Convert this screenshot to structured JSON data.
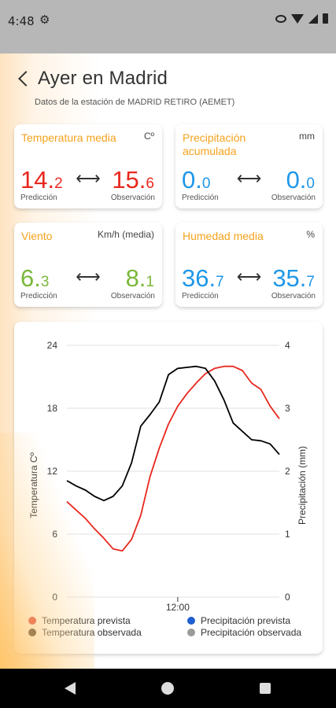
{
  "status_bar": {
    "time": "4:48"
  },
  "header": {
    "title": "Ayer en Madrid",
    "subtitle": "Datos de la estación de MADRID RETIRO (AEMET)"
  },
  "cards": [
    {
      "label": "Temperatura media",
      "unit": "Cº",
      "pred_int": "14.",
      "pred_dec": "2",
      "obs_int": "15.",
      "obs_dec": "6",
      "pred_caption": "Predicción",
      "obs_caption": "Observación",
      "color": "#e8281e"
    },
    {
      "label": "Precipitación acumulada",
      "unit": "mm",
      "pred_int": "0.",
      "pred_dec": "0",
      "obs_int": "0.",
      "obs_dec": "0",
      "pred_caption": "Predicción",
      "obs_caption": "Observación",
      "color": "#1f97e8"
    },
    {
      "label": "Viento",
      "unit": "Km/h (media)",
      "pred_int": "6.",
      "pred_dec": "3",
      "obs_int": "8.",
      "obs_dec": "1",
      "pred_caption": "Predicción",
      "obs_caption": "Observación",
      "color": "#7ab83a"
    },
    {
      "label": "Humedad media",
      "unit": "%",
      "pred_int": "36.",
      "pred_dec": "7",
      "obs_int": "35.",
      "obs_dec": "7",
      "pred_caption": "Predicción",
      "obs_caption": "Observación",
      "color": "#1f97e8"
    }
  ],
  "chart_data": {
    "type": "line",
    "xlabel": "",
    "x_tick_labels": [
      "12:00"
    ],
    "ylabel": "Temperatura Cº",
    "ylabel_right": "Precipitación (mm)",
    "ylim": [
      0,
      24
    ],
    "yticks": [
      "0",
      "6",
      "12",
      "18",
      "24"
    ],
    "ylim_right": [
      0,
      4
    ],
    "yticks_right": [
      "0",
      "1",
      "2",
      "3",
      "4"
    ],
    "hours": [
      0,
      1,
      2,
      3,
      4,
      5,
      6,
      7,
      8,
      9,
      10,
      11,
      12,
      13,
      14,
      15,
      16,
      17,
      18,
      19,
      20,
      21,
      22,
      23
    ],
    "series": [
      {
        "name": "Temperatura prevista",
        "color": "#e8281e",
        "values": [
          9.1,
          8.3,
          7.5,
          6.5,
          5.6,
          4.6,
          4.4,
          5.5,
          7.8,
          11.5,
          14.2,
          16.5,
          18.2,
          19.4,
          20.4,
          21.3,
          21.8,
          22.0,
          22.0,
          21.6,
          20.4,
          19.8,
          18.2,
          17.0
        ]
      },
      {
        "name": "Temperatura observada",
        "color": "#000000",
        "values": [
          11.1,
          10.6,
          10.2,
          9.6,
          9.2,
          9.6,
          10.6,
          12.8,
          16.3,
          17.4,
          18.6,
          21.2,
          21.8,
          21.9,
          22.0,
          21.8,
          20.6,
          18.8,
          16.6,
          15.8,
          15.0,
          14.9,
          14.6,
          13.6
        ]
      },
      {
        "name": "Precipitación prevista",
        "color": "#1f5fd1",
        "values": []
      },
      {
        "name": "Precipitación observada",
        "color": "#9a9a9a",
        "values": []
      }
    ],
    "grid": true,
    "legend_position": "bottom"
  }
}
